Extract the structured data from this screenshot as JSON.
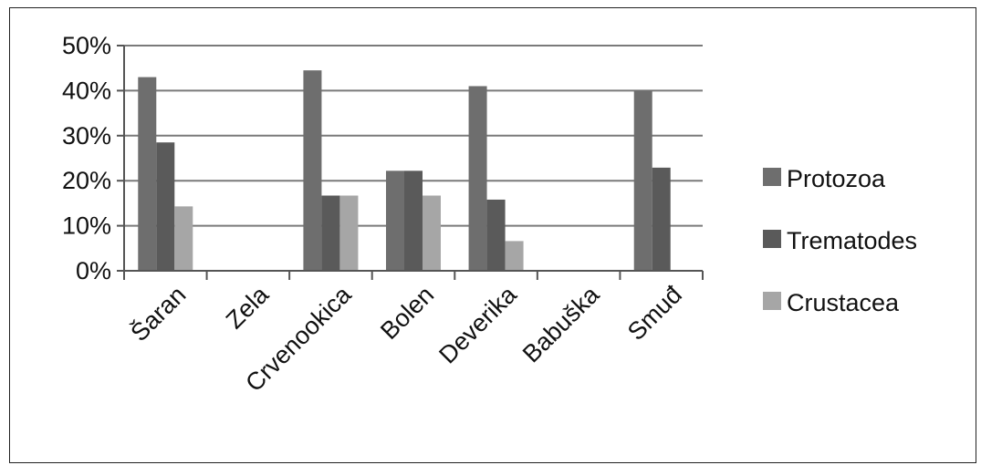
{
  "chart_data": {
    "type": "bar",
    "categories": [
      "Šaran",
      "Zela",
      "Crvenookica",
      "Bolen",
      "Deverika",
      "Babuška",
      "Smuđ"
    ],
    "series": [
      {
        "name": "Protozoa",
        "values": [
          43,
          0,
          44.5,
          22.2,
          41,
          0,
          40
        ],
        "color": "#6e6e6e"
      },
      {
        "name": "Trematodes",
        "values": [
          28.5,
          0,
          16.7,
          22.2,
          15.8,
          0,
          22.9
        ],
        "color": "#5a5a5a"
      },
      {
        "name": "Crustacea",
        "values": [
          14.3,
          0,
          16.7,
          16.7,
          6.6,
          0,
          0
        ],
        "color": "#a6a6a6"
      }
    ],
    "ylim": [
      0,
      50
    ],
    "yticks": [
      "0%",
      "10%",
      "20%",
      "30%",
      "40%",
      "50%"
    ],
    "grid": true,
    "legend_position": "right"
  }
}
